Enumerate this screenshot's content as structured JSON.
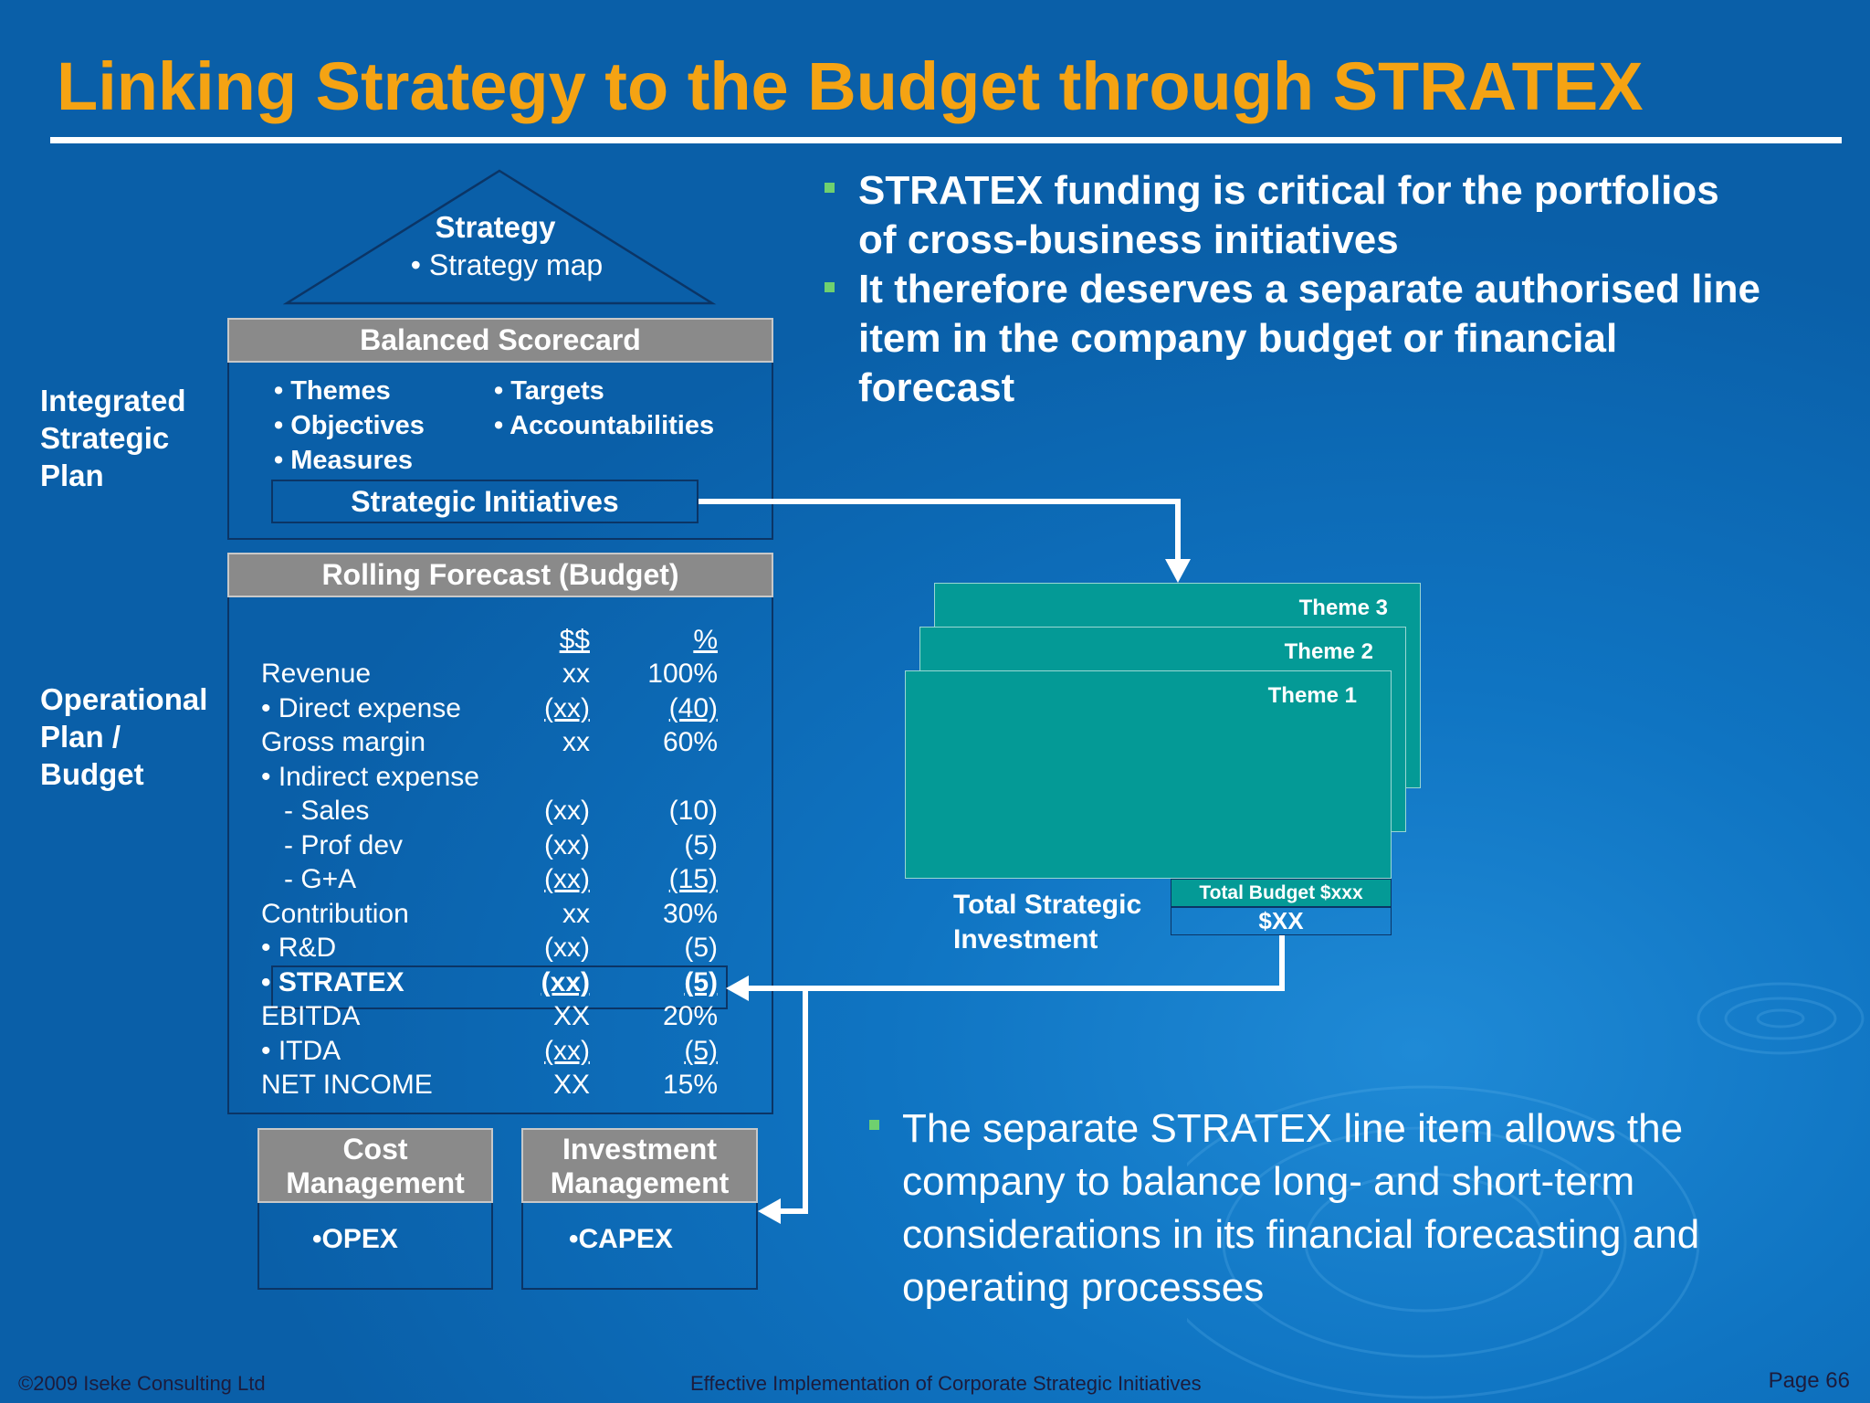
{
  "title": "Linking Strategy to the Budget through STRATEX",
  "pyramid": {
    "heading": "Strategy",
    "item": "• Strategy map"
  },
  "side_labels": {
    "integrated": [
      "Integrated",
      "Strategic",
      "Plan"
    ],
    "operational": [
      "Operational",
      "Plan /",
      "Budget"
    ]
  },
  "scorecard": {
    "header": "Balanced Scorecard",
    "col1": [
      "• Themes",
      "• Objectives",
      "• Measures"
    ],
    "col2": [
      "• Targets",
      "• Accountabilities"
    ],
    "initiatives": "Strategic Initiatives"
  },
  "forecast": {
    "header": "Rolling Forecast (Budget)",
    "col_amount": "$$",
    "col_pct": "%",
    "rows": [
      {
        "label": "Revenue",
        "amount": "xx",
        "pct": "100%"
      },
      {
        "label": "• Direct expense",
        "amount": "(xx)",
        "pct": "(40)"
      },
      {
        "label": "Gross margin",
        "amount": "xx",
        "pct": "60%"
      },
      {
        "label": "• Indirect expense",
        "amount": "",
        "pct": ""
      },
      {
        "label": "   - Sales",
        "amount": "(xx)",
        "pct": "(10)"
      },
      {
        "label": "   - Prof dev",
        "amount": "(xx)",
        "pct": "(5)"
      },
      {
        "label": "   - G+A",
        "amount": "(xx)",
        "pct": "(15)"
      },
      {
        "label": "Contribution",
        "amount": "xx",
        "pct": "30%"
      },
      {
        "label": "• R&D",
        "amount": "(xx)",
        "pct": "(5)"
      },
      {
        "label": "• STRATEX",
        "amount": "(xx)",
        "pct": "(5)"
      },
      {
        "label": "EBITDA",
        "amount": "XX",
        "pct": "20%"
      },
      {
        "label": "• ITDA",
        "amount": "(xx)",
        "pct": "(5)"
      },
      {
        "label": "NET INCOME",
        "amount": "XX",
        "pct": "15%"
      }
    ]
  },
  "cost_management": {
    "header_line1": "Cost",
    "header_line2": "Management",
    "item": "•OPEX"
  },
  "investment_management": {
    "header_line1": "Investment",
    "header_line2": "Management",
    "item": "•CAPEX"
  },
  "themes": {
    "theme3": "Theme 3",
    "theme2": "Theme 2",
    "theme1": "Theme 1",
    "total_budget": "Total Budget  $xxx",
    "total_value": "$XX"
  },
  "total_strategic_investment": [
    "Total Strategic",
    "Investment"
  ],
  "right_bullets": [
    [
      "STRATEX funding is critical for the portfolios",
      "of cross-business initiatives"
    ],
    [
      "It therefore deserves a separate authorised line",
      "item in the company budget or financial",
      "forecast"
    ]
  ],
  "bottom_bullet": [
    "The separate STRATEX line item allows the",
    "company to balance long- and short-term",
    "considerations in its financial forecasting and",
    "operating processes"
  ],
  "footer": {
    "left": "©2009 Iseke Consulting Ltd",
    "center": "Effective Implementation of Corporate Strategic Initiatives",
    "right": "Page 66"
  },
  "colors": {
    "title": "#f5a313",
    "background": "#0f74c2",
    "theme": "#049a96",
    "bar": "#8a8a8a",
    "bullet": "#6fd06f"
  }
}
